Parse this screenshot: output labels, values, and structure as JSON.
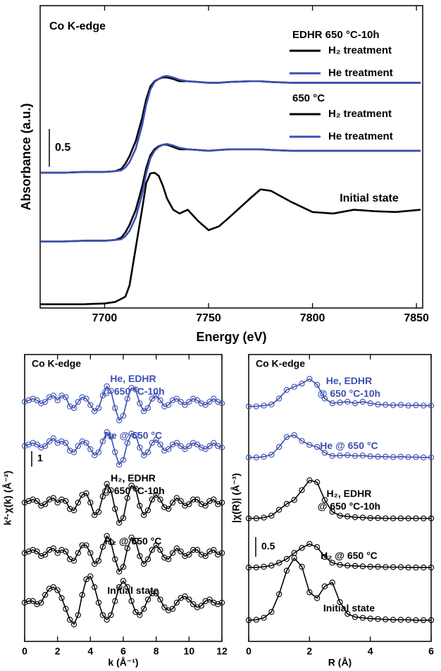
{
  "chart_data": [
    {
      "type": "line",
      "title": "Co K-edge",
      "x_label": "Energy (eV)",
      "y_label": "Absorbance (a.u.)",
      "x": [
        7669,
        7680,
        7690,
        7700,
        7705,
        7708,
        7710,
        7712,
        7715,
        7718,
        7720,
        7722,
        7724,
        7726,
        7728,
        7730,
        7733,
        7736,
        7740,
        7745,
        7750,
        7755,
        7760,
        7770,
        7775,
        7780,
        7790,
        7800,
        7810,
        7820,
        7830,
        7840,
        7852
      ],
      "xlim": [
        7669,
        7853
      ],
      "xticks": [
        7700,
        7750,
        7800,
        7850
      ],
      "ylim": [
        0,
        4
      ],
      "scale_bar": 0.5,
      "legend_groups": [
        {
          "title": "EDHR 650 °C-10h",
          "series": [
            {
              "name": "H₂ treatment",
              "color": "#000000",
              "values": [
                1.79,
                1.79,
                1.8,
                1.8,
                1.81,
                1.84,
                1.91,
                2.01,
                2.21,
                2.51,
                2.76,
                2.93,
                3.0,
                3.03,
                3.05,
                3.05,
                3.03,
                3.0,
                3.0,
                2.99,
                2.98,
                2.98,
                2.99,
                3.0,
                3.0,
                2.99,
                2.98,
                2.98,
                2.98,
                2.98,
                2.98,
                2.98,
                2.98
              ]
            },
            {
              "name": "He treatment",
              "color": "#3d4fb0",
              "values": [
                1.79,
                1.79,
                1.8,
                1.8,
                1.81,
                1.82,
                1.86,
                1.93,
                2.11,
                2.41,
                2.69,
                2.89,
                2.99,
                3.03,
                3.06,
                3.07,
                3.05,
                3.02,
                3.0,
                2.99,
                2.98,
                2.98,
                2.99,
                3.0,
                3.0,
                2.99,
                2.98,
                2.98,
                2.98,
                2.98,
                2.98,
                2.98,
                2.98
              ]
            }
          ]
        },
        {
          "title": "650 °C",
          "series": [
            {
              "name": "H₂ treatment",
              "color": "#000000",
              "values": [
                0.88,
                0.88,
                0.89,
                0.89,
                0.9,
                0.93,
                1.0,
                1.1,
                1.3,
                1.6,
                1.85,
                2.02,
                2.1,
                2.14,
                2.16,
                2.16,
                2.13,
                2.1,
                2.1,
                2.09,
                2.08,
                2.09,
                2.1,
                2.1,
                2.1,
                2.09,
                2.08,
                2.08,
                2.08,
                2.08,
                2.08,
                2.08,
                2.08
              ]
            },
            {
              "name": "He treatment",
              "color": "#3d4fb0",
              "values": [
                0.88,
                0.88,
                0.89,
                0.89,
                0.9,
                0.91,
                0.95,
                1.02,
                1.2,
                1.5,
                1.78,
                1.98,
                2.08,
                2.13,
                2.16,
                2.17,
                2.15,
                2.12,
                2.1,
                2.09,
                2.08,
                2.09,
                2.1,
                2.1,
                2.1,
                2.09,
                2.08,
                2.08,
                2.08,
                2.08,
                2.08,
                2.08,
                2.08
              ]
            }
          ]
        }
      ],
      "series": [
        {
          "name": [
            "Initial state"
          ],
          "color": "#000000",
          "values": [
            0.05,
            0.05,
            0.05,
            0.06,
            0.08,
            0.12,
            0.15,
            0.3,
            0.8,
            1.3,
            1.65,
            1.78,
            1.79,
            1.75,
            1.62,
            1.45,
            1.3,
            1.25,
            1.3,
            1.15,
            1.03,
            1.08,
            1.2,
            1.45,
            1.57,
            1.55,
            1.4,
            1.27,
            1.25,
            1.3,
            1.28,
            1.27,
            1.3
          ]
        }
      ]
    },
    {
      "type": "line",
      "markers": true,
      "title": "Co K-edge",
      "x_label": "k (Å⁻¹)",
      "y_label": "k²·χ(k) (Å⁻²)",
      "x": [
        0,
        0.25,
        0.5,
        0.75,
        1,
        1.25,
        1.5,
        1.75,
        2,
        2.25,
        2.5,
        2.75,
        3,
        3.25,
        3.5,
        3.75,
        4,
        4.25,
        4.5,
        4.75,
        5,
        5.25,
        5.5,
        5.75,
        6,
        6.25,
        6.5,
        6.75,
        7,
        7.25,
        7.5,
        7.75,
        8,
        8.25,
        8.5,
        8.75,
        9,
        9.25,
        9.5,
        9.75,
        10,
        10.25,
        10.5,
        10.75,
        11,
        11.25,
        11.5,
        11.75,
        12
      ],
      "xlim": [
        0,
        12
      ],
      "xticks": [
        0,
        2,
        4,
        6,
        8,
        10,
        12
      ],
      "ylim": [
        0,
        18.5
      ],
      "scale_bar": 1,
      "series": [
        {
          "name": [
            "He, EDHR",
            "@ 650 °C-10h"
          ],
          "color": "#3d4fb0",
          "values": [
            15.45,
            15.55,
            15.65,
            15.55,
            15.35,
            15.45,
            15.75,
            15.85,
            15.55,
            15.85,
            15.75,
            15.15,
            15.05,
            15.45,
            15.75,
            15.65,
            15.25,
            14.85,
            15.05,
            15.85,
            16.45,
            16.15,
            15.05,
            14.25,
            14.55,
            15.65,
            16.35,
            16.25,
            15.35,
            14.85,
            15.05,
            15.65,
            15.85,
            15.55,
            15.15,
            15.25,
            15.55,
            15.65,
            15.45,
            15.25,
            15.45,
            15.65,
            15.55,
            15.35,
            15.25,
            15.45,
            15.65,
            15.45,
            15.35
          ]
        },
        {
          "name": [
            "He @ 650 °C"
          ],
          "color": "#3d4fb0",
          "values": [
            12.6,
            12.7,
            12.8,
            12.7,
            12.5,
            12.6,
            12.9,
            13.1,
            12.8,
            12.9,
            12.8,
            12.3,
            12.2,
            12.6,
            12.9,
            12.8,
            12.4,
            12.0,
            12.2,
            12.9,
            13.5,
            13.2,
            12.2,
            11.4,
            11.7,
            12.8,
            13.4,
            13.3,
            12.5,
            12.0,
            12.2,
            12.8,
            13.0,
            12.7,
            12.3,
            12.4,
            12.7,
            12.8,
            12.6,
            12.4,
            12.6,
            12.8,
            12.7,
            12.5,
            12.4,
            12.6,
            12.8,
            12.6,
            12.5
          ]
        },
        {
          "name": [
            "H₂, EDHR",
            "@ 650 °C-10h"
          ],
          "color": "#000000",
          "values": [
            8.95,
            9.05,
            9.15,
            9.05,
            8.75,
            8.85,
            9.15,
            9.25,
            8.95,
            9.15,
            9.05,
            8.55,
            8.45,
            8.95,
            9.45,
            9.55,
            8.95,
            8.15,
            8.35,
            9.35,
            10.15,
            9.75,
            8.55,
            7.65,
            7.95,
            9.25,
            10.05,
            9.85,
            8.75,
            8.15,
            8.45,
            9.15,
            9.45,
            9.15,
            8.65,
            8.55,
            8.95,
            9.25,
            9.05,
            8.75,
            8.85,
            9.15,
            9.15,
            8.85,
            8.75,
            9.05,
            9.15,
            8.85,
            8.95
          ]
        },
        {
          "name": [
            "H₂ @ 650 °C"
          ],
          "color": "#000000",
          "values": [
            5.7,
            5.8,
            5.9,
            5.8,
            5.5,
            5.6,
            5.9,
            6.0,
            5.7,
            5.9,
            5.8,
            5.3,
            5.2,
            5.7,
            6.2,
            6.2,
            5.7,
            5.0,
            5.2,
            6.1,
            6.8,
            6.4,
            5.3,
            4.5,
            4.8,
            6.0,
            6.7,
            6.5,
            5.5,
            5.0,
            5.3,
            5.9,
            6.2,
            5.9,
            5.4,
            5.3,
            5.7,
            6.0,
            5.8,
            5.5,
            5.6,
            5.9,
            5.9,
            5.6,
            5.5,
            5.8,
            5.9,
            5.6,
            5.7
          ]
        },
        {
          "name": [
            "Initial state"
          ],
          "color": "#000000",
          "values": [
            2.5,
            2.6,
            2.6,
            2.4,
            2.5,
            3.0,
            3.4,
            3.5,
            3.3,
            2.8,
            2.1,
            1.4,
            1.1,
            1.7,
            3.0,
            4.0,
            4.2,
            3.5,
            2.5,
            1.7,
            1.4,
            1.7,
            2.6,
            3.5,
            3.9,
            3.5,
            2.6,
            1.9,
            1.7,
            2.1,
            2.7,
            3.1,
            3.1,
            2.7,
            2.2,
            2.0,
            2.1,
            2.5,
            2.8,
            2.9,
            2.7,
            2.4,
            2.2,
            2.3,
            2.6,
            2.7,
            2.5,
            2.4,
            2.5
          ]
        }
      ]
    },
    {
      "type": "line",
      "markers": true,
      "title": "Co K-edge",
      "x_label": "R (Å)",
      "y_label": "|χ(R)| (Å⁻³)",
      "x": [
        0,
        0.25,
        0.5,
        0.75,
        1,
        1.25,
        1.5,
        1.75,
        2,
        2.25,
        2.5,
        2.75,
        3,
        3.25,
        3.5,
        3.75,
        4,
        4.25,
        4.5,
        4.75,
        5,
        5.25,
        5.5,
        5.75,
        6
      ],
      "xlim": [
        0,
        6
      ],
      "xticks": [
        0,
        2,
        4,
        6
      ],
      "ylim": [
        0,
        7.3
      ],
      "scale_bar": 0.5,
      "series": [
        {
          "name": [
            "He, EDHR",
            "@ 650 °C-10h"
          ],
          "color": "#3d4fb0",
          "values": [
            5.98,
            5.98,
            6.0,
            6.03,
            6.18,
            6.4,
            6.48,
            6.56,
            6.68,
            6.53,
            6.18,
            6.06,
            6.08,
            6.1,
            6.06,
            6.1,
            6.06,
            6.03,
            6.02,
            6.01,
            6.02,
            6.0,
            6.01,
            6.0,
            6.0
          ]
        },
        {
          "name": [
            "He @ 650 °C"
          ],
          "color": "#3d4fb0",
          "values": [
            4.68,
            4.68,
            4.7,
            4.75,
            4.95,
            5.2,
            5.25,
            5.1,
            5.0,
            4.95,
            4.8,
            4.72,
            4.73,
            4.74,
            4.72,
            4.73,
            4.71,
            4.7,
            4.7,
            4.69,
            4.7,
            4.69,
            4.69,
            4.68,
            4.68
          ]
        },
        {
          "name": [
            "H₂, EDHR",
            "@ 650 °C-10h"
          ],
          "color": "#000000",
          "values": [
            3.13,
            3.13,
            3.15,
            3.2,
            3.35,
            3.5,
            3.6,
            3.85,
            4.1,
            4.05,
            3.6,
            3.3,
            3.2,
            3.18,
            3.16,
            3.15,
            3.14,
            3.14,
            3.13,
            3.13,
            3.13,
            3.13,
            3.13,
            3.13,
            3.13
          ]
        },
        {
          "name": [
            "H₂ @ 650 °C"
          ],
          "color": "#000000",
          "values": [
            1.88,
            1.88,
            1.9,
            1.93,
            2.0,
            2.1,
            2.25,
            2.38,
            2.48,
            2.4,
            2.15,
            2.0,
            1.95,
            1.93,
            1.92,
            1.91,
            1.9,
            1.9,
            1.89,
            1.89,
            1.89,
            1.88,
            1.88,
            1.88,
            1.88
          ]
        },
        {
          "name": [
            "Initial state"
          ],
          "color": "#000000",
          "values": [
            0.54,
            0.55,
            0.6,
            0.75,
            1.2,
            1.8,
            2.12,
            1.9,
            1.25,
            1.1,
            1.4,
            1.5,
            1.0,
            0.7,
            0.62,
            0.6,
            0.58,
            0.57,
            0.56,
            0.55,
            0.55,
            0.55,
            0.54,
            0.54,
            0.54
          ]
        }
      ]
    }
  ]
}
